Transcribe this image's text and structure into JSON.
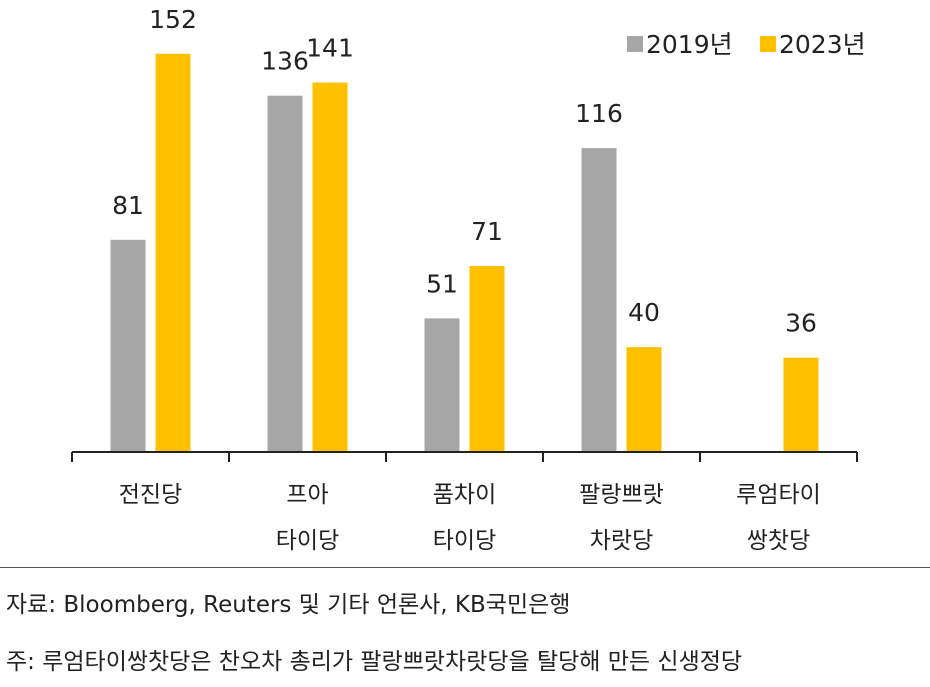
{
  "chart_data": {
    "type": "bar",
    "categories": [
      [
        "전진당"
      ],
      [
        "프아",
        "타이당"
      ],
      [
        "품차이",
        "타이당"
      ],
      [
        "팔랑쁘랏",
        "차랏당"
      ],
      [
        "루엄타이",
        "쌍찻당"
      ]
    ],
    "series": [
      {
        "name": "2019년",
        "values": [
          81,
          136,
          51,
          116,
          null
        ],
        "color": "#a6a6a6"
      },
      {
        "name": "2023년",
        "values": [
          152,
          141,
          71,
          40,
          36
        ],
        "color": "#ffc000"
      }
    ],
    "ylim": [
      0,
      160
    ],
    "legend": "top-right"
  },
  "notes": {
    "source": "자료: Bloomberg, Reuters 및 기타 언론사, KB국민은행",
    "footnote": "주: 루엄타이쌍찻당은 찬오차 총리가 팔랑쁘랏차랏당을 탈당해 만든 신생정당"
  }
}
